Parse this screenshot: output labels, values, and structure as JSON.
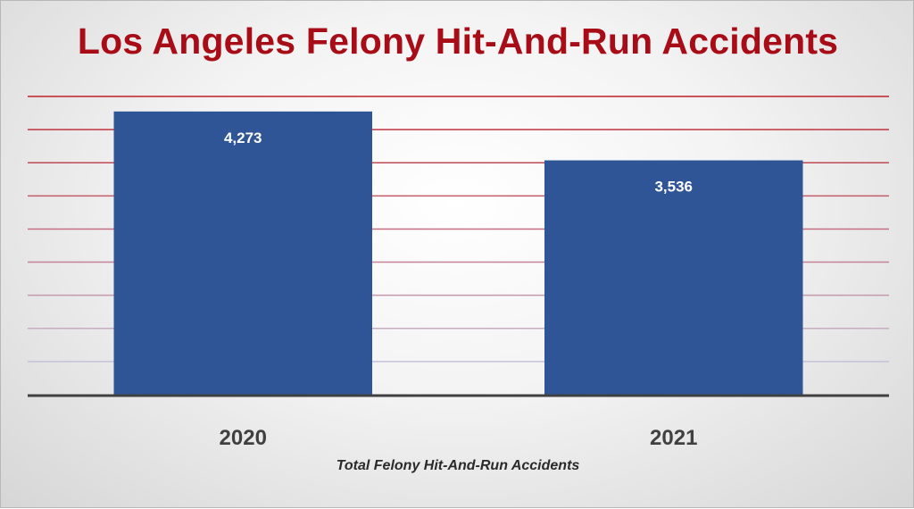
{
  "chart_data": {
    "type": "bar",
    "title": "Los Angeles Felony Hit-And-Run Accidents",
    "xlabel": "Total Felony Hit-And-Run Accidents",
    "ylabel": "",
    "categories": [
      "2020",
      "2021"
    ],
    "values": [
      4273,
      3536
    ],
    "data_labels": [
      "4,273",
      "3,536"
    ],
    "ylim": [
      0,
      4500
    ],
    "grid": true,
    "legend": "none",
    "colors": {
      "bar": "#2f5597",
      "title": "#a80c17",
      "grid_top": "#c0202a",
      "grid_bottom": "#c8d4ee",
      "axis": "#404040"
    }
  }
}
